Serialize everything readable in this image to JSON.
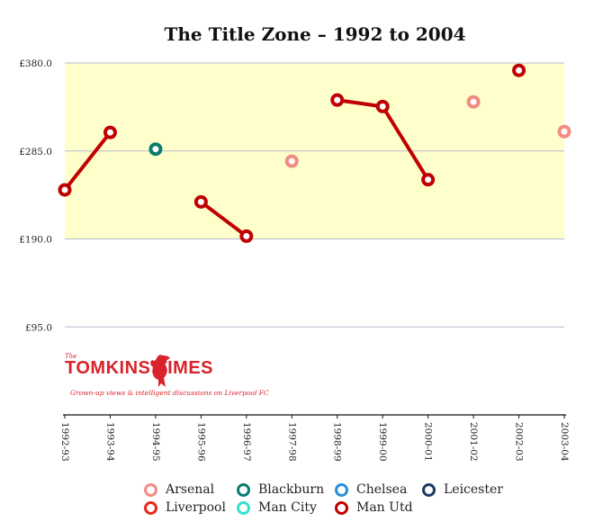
{
  "chart_data": {
    "type": "line",
    "title": "The Title Zone – 1992 to 2004",
    "x_categories": [
      "1992-93",
      "1993-94",
      "1994-95",
      "1995-96",
      "1996-97",
      "1997-98",
      "1998-99",
      "1999-00",
      "2000-01",
      "2001-02",
      "2002-03",
      "2003-04"
    ],
    "y_ticks": [
      "£380.0",
      "£285.0",
      "£190.0",
      "£95.0"
    ],
    "ylim": [
      0,
      380
    ],
    "highlight_band": [
      190,
      380
    ],
    "grid": true,
    "legend_position": "bottom",
    "series": [
      {
        "name": "Arsenal",
        "color": "#f28b82",
        "points": [
          {
            "x": "1997-98",
            "y": 274
          },
          {
            "x": "2001-02",
            "y": 338
          },
          {
            "x": "2003-04",
            "y": 306
          }
        ]
      },
      {
        "name": "Liverpool",
        "color": "#e8281e",
        "points": []
      },
      {
        "name": "Blackburn",
        "color": "#0b7d6c",
        "points": [
          {
            "x": "1994-95",
            "y": 287
          }
        ]
      },
      {
        "name": "Man City",
        "color": "#39e0d0",
        "points": []
      },
      {
        "name": "Chelsea",
        "color": "#2a8fd8",
        "points": []
      },
      {
        "name": "Man Utd",
        "color": "#c00000",
        "points": [
          {
            "x": "1992-93",
            "y": 243
          },
          {
            "x": "1993-94",
            "y": 305
          },
          {
            "x": "1995-96",
            "y": 230
          },
          {
            "x": "1996-97",
            "y": 193
          },
          {
            "x": "1998-99",
            "y": 340
          },
          {
            "x": "1999-00",
            "y": 333
          },
          {
            "x": "2000-01",
            "y": 254
          },
          {
            "x": "2002-03",
            "y": 372
          }
        ]
      },
      {
        "name": "Leicester",
        "color": "#1d3b66",
        "points": []
      }
    ],
    "segments": [
      {
        "series": "Man Utd",
        "from": "1992-93",
        "to": "1993-94"
      },
      {
        "series": "Man Utd",
        "from": "1995-96",
        "to": "1996-97"
      },
      {
        "series": "Man Utd",
        "from": "1998-99",
        "to": "1999-00"
      },
      {
        "series": "Man Utd",
        "from": "1999-00",
        "to": "2000-01"
      }
    ],
    "legend": [
      {
        "label": "Arsenal",
        "color": "#f28b82"
      },
      {
        "label": "Blackburn",
        "color": "#0b7d6c"
      },
      {
        "label": "Chelsea",
        "color": "#2a8fd8"
      },
      {
        "label": "Leicester",
        "color": "#1d3b66"
      },
      {
        "label": "Liverpool",
        "color": "#e8281e"
      },
      {
        "label": "Man City",
        "color": "#39e0d0"
      },
      {
        "label": "Man Utd",
        "color": "#c00000"
      }
    ]
  },
  "logo": {
    "small_text": "The",
    "name": "TOMKINS TIMES",
    "tagline": "Grown-up views & intelligent discussions on Liverpool FC"
  }
}
